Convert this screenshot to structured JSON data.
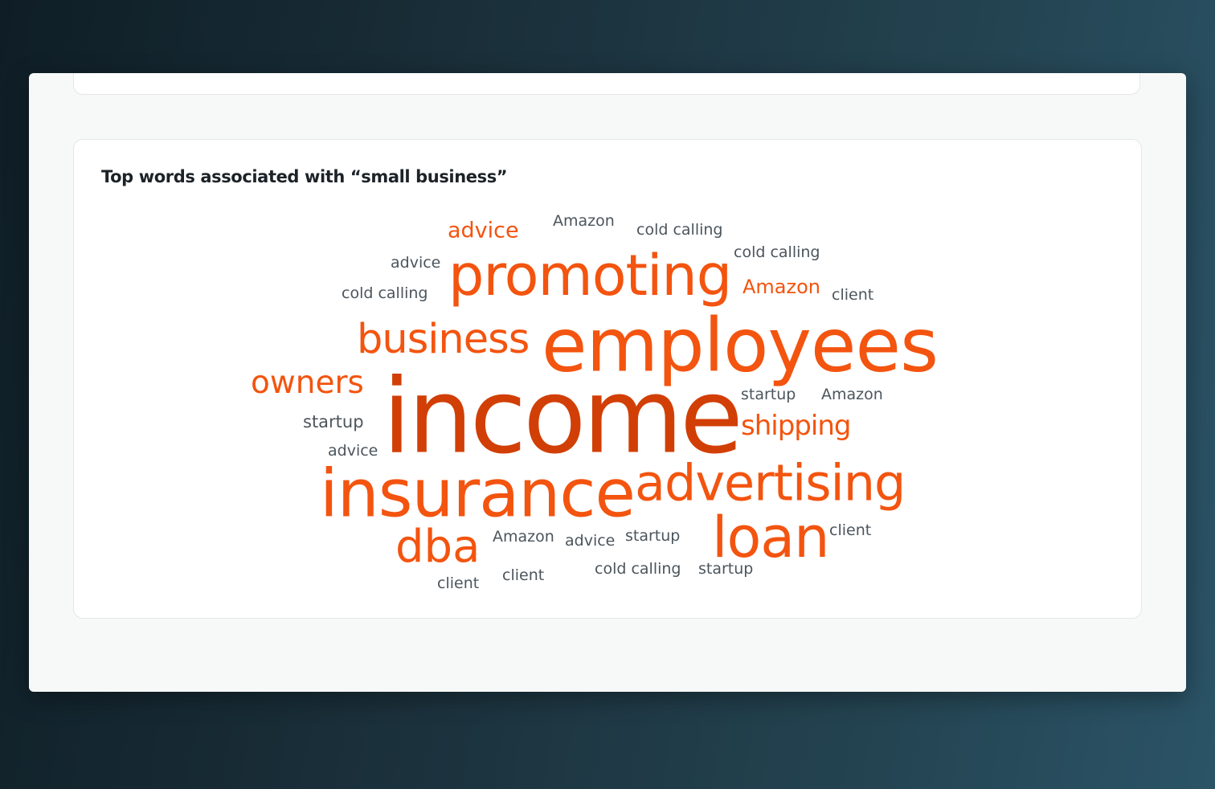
{
  "card": {
    "title": "Top words associated with “small business”"
  },
  "colors": {
    "primary": "#d13f06",
    "accent": "#f3540f",
    "minor": "#4b555c"
  },
  "wordcloud": [
    {
      "text": "income",
      "color": "#d13f06",
      "size": 128,
      "spacing": -4
    },
    {
      "text": "employees",
      "color": "#f3540f",
      "size": 92,
      "spacing": -1
    },
    {
      "text": "insurance",
      "color": "#f3540f",
      "size": 82,
      "spacing": -1
    },
    {
      "text": "promoting",
      "color": "#f3540f",
      "size": 70,
      "spacing": -1
    },
    {
      "text": "advertising",
      "color": "#f3540f",
      "size": 62,
      "spacing": -1
    },
    {
      "text": "loan",
      "color": "#f3540f",
      "size": 70,
      "spacing": -1
    },
    {
      "text": "dba",
      "color": "#f3540f",
      "size": 56,
      "spacing": 0
    },
    {
      "text": "business",
      "color": "#f3540f",
      "size": 51,
      "spacing": -1
    },
    {
      "text": "owners",
      "color": "#f3540f",
      "size": 39,
      "spacing": 0
    },
    {
      "text": "shipping",
      "color": "#f3540f",
      "size": 34,
      "spacing": -1
    },
    {
      "text": "advice",
      "color": "#f3540f",
      "size": 27,
      "spacing": 0
    },
    {
      "text": "Amazon",
      "color": "#f3540f",
      "size": 24,
      "spacing": 0
    },
    {
      "text": "Amazon",
      "color": "#4b555c",
      "size": 19,
      "spacing": 0
    },
    {
      "text": "cold calling",
      "color": "#4b555c",
      "size": 19,
      "spacing": 0
    },
    {
      "text": "cold calling",
      "color": "#4b555c",
      "size": 19,
      "spacing": 0
    },
    {
      "text": "advice",
      "color": "#4b555c",
      "size": 19,
      "spacing": 0
    },
    {
      "text": "cold calling",
      "color": "#4b555c",
      "size": 19,
      "spacing": 0
    },
    {
      "text": "client",
      "color": "#4b555c",
      "size": 19,
      "spacing": 0
    },
    {
      "text": "startup",
      "color": "#4b555c",
      "size": 19,
      "spacing": 0
    },
    {
      "text": "Amazon",
      "color": "#4b555c",
      "size": 19,
      "spacing": 0
    },
    {
      "text": "startup",
      "color": "#4b555c",
      "size": 21,
      "spacing": 0
    },
    {
      "text": "advice",
      "color": "#4b555c",
      "size": 19,
      "spacing": 0
    },
    {
      "text": "Amazon",
      "color": "#4b555c",
      "size": 19,
      "spacing": 0
    },
    {
      "text": "advice",
      "color": "#4b555c",
      "size": 19,
      "spacing": 0
    },
    {
      "text": "startup",
      "color": "#4b555c",
      "size": 19,
      "spacing": 0
    },
    {
      "text": "client",
      "color": "#4b555c",
      "size": 19,
      "spacing": 0
    },
    {
      "text": "cold calling",
      "color": "#4b555c",
      "size": 19,
      "spacing": 0
    },
    {
      "text": "startup",
      "color": "#4b555c",
      "size": 19,
      "spacing": 0
    },
    {
      "text": "client",
      "color": "#4b555c",
      "size": 19,
      "spacing": 0
    },
    {
      "text": "client",
      "color": "#4b555c",
      "size": 19,
      "spacing": 0
    }
  ]
}
